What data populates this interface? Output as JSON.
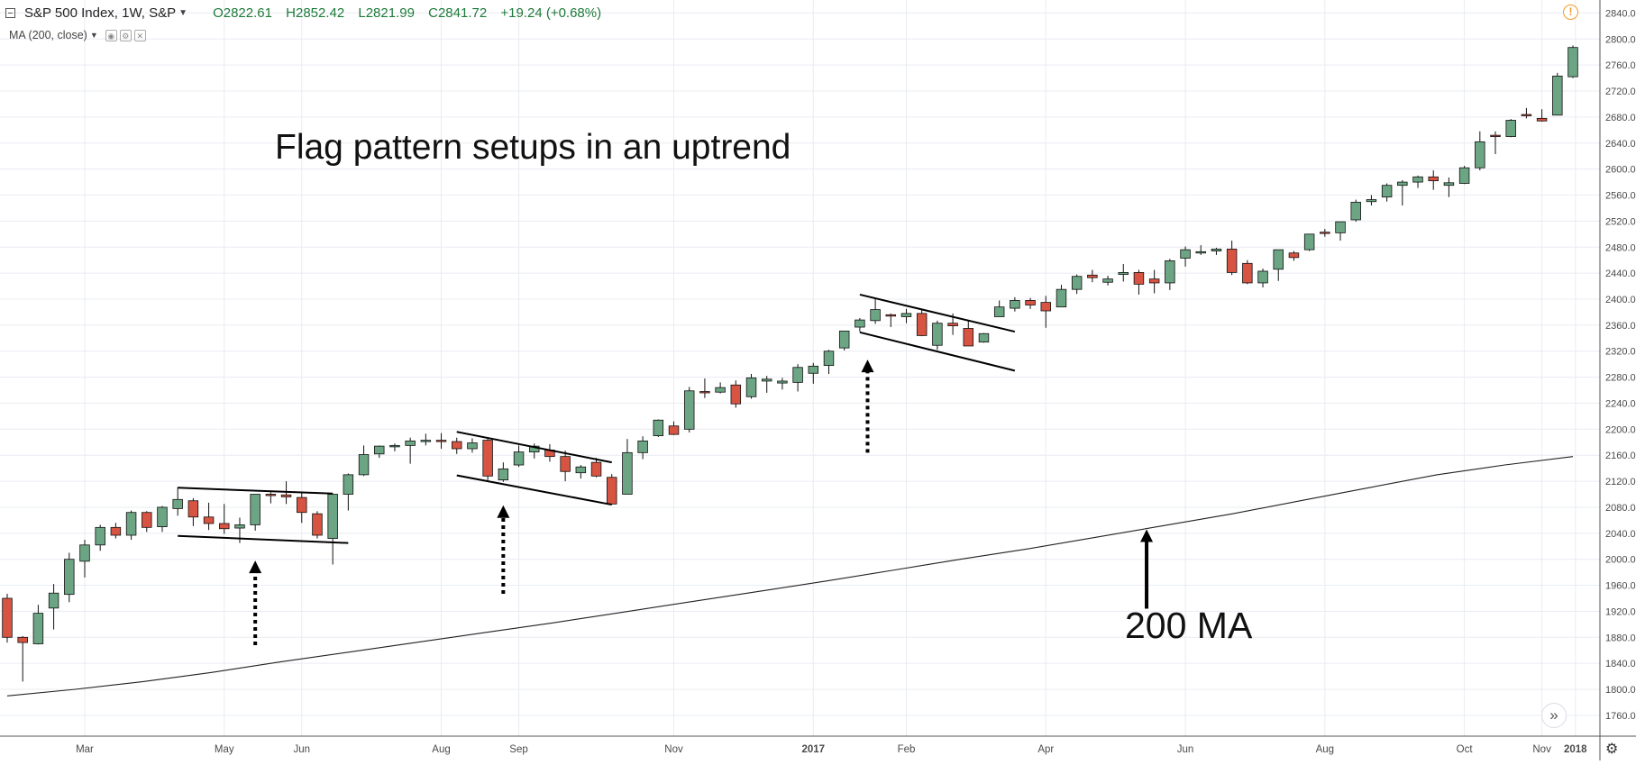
{
  "header": {
    "symbol": "S&P 500 Index, 1W, S&P",
    "open": "O2822.61",
    "high": "H2852.42",
    "low": "L2821.99",
    "close": "C2841.72",
    "change": "+19.24 (+0.68%)"
  },
  "indicator": {
    "label": "MA (200, close)"
  },
  "annotations": {
    "title": "Flag pattern setups in an uptrend",
    "ma_label": "200 MA"
  },
  "colors": {
    "up": "#6ba583",
    "down": "#d75442",
    "ohlc_text": "#1e7a3a",
    "alert": "#f39a2a"
  },
  "chart_data": {
    "type": "candlestick",
    "title": "S&P 500 Index, 1W, S&P",
    "xlabel": "",
    "ylabel": "",
    "ylim": [
      1728,
      2860
    ],
    "grid": true,
    "y_ticks": [
      "1760.00",
      "1800.00",
      "1840.00",
      "1880.00",
      "1920.00",
      "1960.00",
      "2000.00",
      "2040.00",
      "2080.00",
      "2120.00",
      "2160.00",
      "2200.00",
      "2240.00",
      "2280.00",
      "2320.00",
      "2360.00",
      "2400.00",
      "2440.00",
      "2480.00",
      "2520.00",
      "2560.00",
      "2600.00",
      "2640.00",
      "2680.00",
      "2720.00",
      "2760.00",
      "2800.00",
      "2840.00"
    ],
    "x_ticks": [
      "Mar",
      "May",
      "Jun",
      "Aug",
      "Sep",
      "Nov",
      "2017",
      "Feb",
      "Apr",
      "Jun",
      "Aug",
      "Oct",
      "Nov",
      "2018"
    ],
    "bold_ticks": [
      "2017",
      "2018"
    ],
    "candles": [
      {
        "o": 1940,
        "h": 1947,
        "l": 1872,
        "c": 1880
      },
      {
        "o": 1880,
        "h": 1882,
        "l": 1812,
        "c": 1872
      },
      {
        "o": 1870,
        "h": 1930,
        "l": 1869,
        "c": 1917
      },
      {
        "o": 1925,
        "h": 1962,
        "l": 1892,
        "c": 1948
      },
      {
        "o": 1946,
        "h": 2010,
        "l": 1934,
        "c": 2000
      },
      {
        "o": 1997,
        "h": 2030,
        "l": 1972,
        "c": 2022
      },
      {
        "o": 2022,
        "h": 2053,
        "l": 2013,
        "c": 2049
      },
      {
        "o": 2049,
        "h": 2056,
        "l": 2032,
        "c": 2037
      },
      {
        "o": 2037,
        "h": 2075,
        "l": 2030,
        "c": 2072
      },
      {
        "o": 2072,
        "h": 2074,
        "l": 2042,
        "c": 2049
      },
      {
        "o": 2050,
        "h": 2082,
        "l": 2042,
        "c": 2080
      },
      {
        "o": 2078,
        "h": 2111,
        "l": 2067,
        "c": 2092
      },
      {
        "o": 2090,
        "h": 2094,
        "l": 2051,
        "c": 2065
      },
      {
        "o": 2065,
        "h": 2087,
        "l": 2045,
        "c": 2055
      },
      {
        "o": 2055,
        "h": 2085,
        "l": 2039,
        "c": 2047
      },
      {
        "o": 2048,
        "h": 2064,
        "l": 2025,
        "c": 2053
      },
      {
        "o": 2053,
        "h": 2100,
        "l": 2044,
        "c": 2100
      },
      {
        "o": 2100,
        "h": 2103,
        "l": 2086,
        "c": 2099
      },
      {
        "o": 2099,
        "h": 2120,
        "l": 2085,
        "c": 2096
      },
      {
        "o": 2095,
        "h": 2102,
        "l": 2056,
        "c": 2072
      },
      {
        "o": 2070,
        "h": 2074,
        "l": 2032,
        "c": 2037
      },
      {
        "o": 2032,
        "h": 2101,
        "l": 1992,
        "c": 2100
      },
      {
        "o": 2100,
        "h": 2132,
        "l": 2075,
        "c": 2130
      },
      {
        "o": 2130,
        "h": 2175,
        "l": 2128,
        "c": 2161
      },
      {
        "o": 2162,
        "h": 2175,
        "l": 2156,
        "c": 2174
      },
      {
        "o": 2174,
        "h": 2178,
        "l": 2166,
        "c": 2175
      },
      {
        "o": 2175,
        "h": 2187,
        "l": 2147,
        "c": 2182
      },
      {
        "o": 2182,
        "h": 2193,
        "l": 2175,
        "c": 2183
      },
      {
        "o": 2183,
        "h": 2194,
        "l": 2170,
        "c": 2181
      },
      {
        "o": 2181,
        "h": 2187,
        "l": 2162,
        "c": 2170
      },
      {
        "o": 2170,
        "h": 2186,
        "l": 2164,
        "c": 2179
      },
      {
        "o": 2183,
        "h": 2186,
        "l": 2119,
        "c": 2128
      },
      {
        "o": 2122,
        "h": 2149,
        "l": 2119,
        "c": 2139
      },
      {
        "o": 2145,
        "h": 2175,
        "l": 2142,
        "c": 2165
      },
      {
        "o": 2165,
        "h": 2178,
        "l": 2155,
        "c": 2174
      },
      {
        "o": 2168,
        "h": 2177,
        "l": 2150,
        "c": 2158
      },
      {
        "o": 2158,
        "h": 2167,
        "l": 2120,
        "c": 2135
      },
      {
        "o": 2133,
        "h": 2145,
        "l": 2124,
        "c": 2142
      },
      {
        "o": 2149,
        "h": 2156,
        "l": 2126,
        "c": 2128
      },
      {
        "o": 2126,
        "h": 2131,
        "l": 2084,
        "c": 2085
      },
      {
        "o": 2100,
        "h": 2185,
        "l": 2100,
        "c": 2164
      },
      {
        "o": 2164,
        "h": 2189,
        "l": 2154,
        "c": 2182
      },
      {
        "o": 2190,
        "h": 2215,
        "l": 2188,
        "c": 2214
      },
      {
        "o": 2205,
        "h": 2212,
        "l": 2191,
        "c": 2192
      },
      {
        "o": 2200,
        "h": 2265,
        "l": 2195,
        "c": 2259
      },
      {
        "o": 2258,
        "h": 2278,
        "l": 2248,
        "c": 2257
      },
      {
        "o": 2257,
        "h": 2272,
        "l": 2255,
        "c": 2264
      },
      {
        "o": 2268,
        "h": 2275,
        "l": 2233,
        "c": 2239
      },
      {
        "o": 2250,
        "h": 2285,
        "l": 2247,
        "c": 2279
      },
      {
        "o": 2274,
        "h": 2282,
        "l": 2256,
        "c": 2277
      },
      {
        "o": 2271,
        "h": 2279,
        "l": 2261,
        "c": 2274
      },
      {
        "o": 2272,
        "h": 2300,
        "l": 2258,
        "c": 2295
      },
      {
        "o": 2286,
        "h": 2302,
        "l": 2270,
        "c": 2297
      },
      {
        "o": 2298,
        "h": 2322,
        "l": 2285,
        "c": 2320
      },
      {
        "o": 2325,
        "h": 2351,
        "l": 2321,
        "c": 2351
      },
      {
        "o": 2357,
        "h": 2371,
        "l": 2350,
        "c": 2368
      },
      {
        "o": 2367,
        "h": 2401,
        "l": 2362,
        "c": 2384
      },
      {
        "o": 2376,
        "h": 2378,
        "l": 2357,
        "c": 2374
      },
      {
        "o": 2373,
        "h": 2385,
        "l": 2363,
        "c": 2378
      },
      {
        "o": 2378,
        "h": 2383,
        "l": 2343,
        "c": 2344
      },
      {
        "o": 2329,
        "h": 2367,
        "l": 2322,
        "c": 2363
      },
      {
        "o": 2363,
        "h": 2378,
        "l": 2345,
        "c": 2359
      },
      {
        "o": 2355,
        "h": 2367,
        "l": 2328,
        "c": 2328
      },
      {
        "o": 2334,
        "h": 2348,
        "l": 2333,
        "c": 2347
      },
      {
        "o": 2373,
        "h": 2398,
        "l": 2373,
        "c": 2388
      },
      {
        "o": 2386,
        "h": 2403,
        "l": 2381,
        "c": 2398
      },
      {
        "o": 2398,
        "h": 2402,
        "l": 2385,
        "c": 2391
      },
      {
        "o": 2395,
        "h": 2405,
        "l": 2356,
        "c": 2382
      },
      {
        "o": 2388,
        "h": 2422,
        "l": 2388,
        "c": 2415
      },
      {
        "o": 2415,
        "h": 2438,
        "l": 2408,
        "c": 2435
      },
      {
        "o": 2437,
        "h": 2445,
        "l": 2426,
        "c": 2433
      },
      {
        "o": 2426,
        "h": 2436,
        "l": 2421,
        "c": 2431
      },
      {
        "o": 2438,
        "h": 2454,
        "l": 2427,
        "c": 2441
      },
      {
        "o": 2441,
        "h": 2445,
        "l": 2407,
        "c": 2423
      },
      {
        "o": 2431,
        "h": 2445,
        "l": 2409,
        "c": 2425
      },
      {
        "o": 2425,
        "h": 2462,
        "l": 2414,
        "c": 2459
      },
      {
        "o": 2463,
        "h": 2481,
        "l": 2450,
        "c": 2476
      },
      {
        "o": 2472,
        "h": 2483,
        "l": 2468,
        "c": 2473
      },
      {
        "o": 2474,
        "h": 2479,
        "l": 2468,
        "c": 2477
      },
      {
        "o": 2477,
        "h": 2490,
        "l": 2437,
        "c": 2441
      },
      {
        "o": 2455,
        "h": 2460,
        "l": 2423,
        "c": 2425
      },
      {
        "o": 2425,
        "h": 2447,
        "l": 2418,
        "c": 2443
      },
      {
        "o": 2446,
        "h": 2476,
        "l": 2428,
        "c": 2476
      },
      {
        "o": 2471,
        "h": 2474,
        "l": 2459,
        "c": 2464
      },
      {
        "o": 2476,
        "h": 2500,
        "l": 2474,
        "c": 2500
      },
      {
        "o": 2503,
        "h": 2508,
        "l": 2496,
        "c": 2502
      },
      {
        "o": 2502,
        "h": 2519,
        "l": 2490,
        "c": 2519
      },
      {
        "o": 2522,
        "h": 2553,
        "l": 2519,
        "c": 2549
      },
      {
        "o": 2550,
        "h": 2560,
        "l": 2544,
        "c": 2553
      },
      {
        "o": 2557,
        "h": 2578,
        "l": 2550,
        "c": 2575
      },
      {
        "o": 2575,
        "h": 2583,
        "l": 2544,
        "c": 2580
      },
      {
        "o": 2580,
        "h": 2590,
        "l": 2571,
        "c": 2588
      },
      {
        "o": 2588,
        "h": 2598,
        "l": 2568,
        "c": 2582
      },
      {
        "o": 2575,
        "h": 2587,
        "l": 2557,
        "c": 2579
      },
      {
        "o": 2578,
        "h": 2605,
        "l": 2577,
        "c": 2602
      },
      {
        "o": 2602,
        "h": 2658,
        "l": 2598,
        "c": 2642
      },
      {
        "o": 2652,
        "h": 2658,
        "l": 2623,
        "c": 2651
      },
      {
        "o": 2650,
        "h": 2677,
        "l": 2649,
        "c": 2675
      },
      {
        "o": 2684,
        "h": 2694,
        "l": 2678,
        "c": 2683
      },
      {
        "o": 2678,
        "h": 2692,
        "l": 2673,
        "c": 2674
      },
      {
        "o": 2683,
        "h": 2748,
        "l": 2683,
        "c": 2743
      },
      {
        "o": 2742,
        "h": 2790,
        "l": 2740,
        "c": 2787
      }
    ],
    "ma200": {
      "label": "MA (200, close)",
      "values": [
        1790,
        1800,
        1812,
        1826,
        1842,
        1857,
        1872,
        1887,
        1902,
        1918,
        1934,
        1950,
        1966,
        1983,
        2000,
        2016,
        2034,
        2052,
        2070,
        2090,
        2110,
        2130,
        2145,
        2158
      ]
    }
  }
}
